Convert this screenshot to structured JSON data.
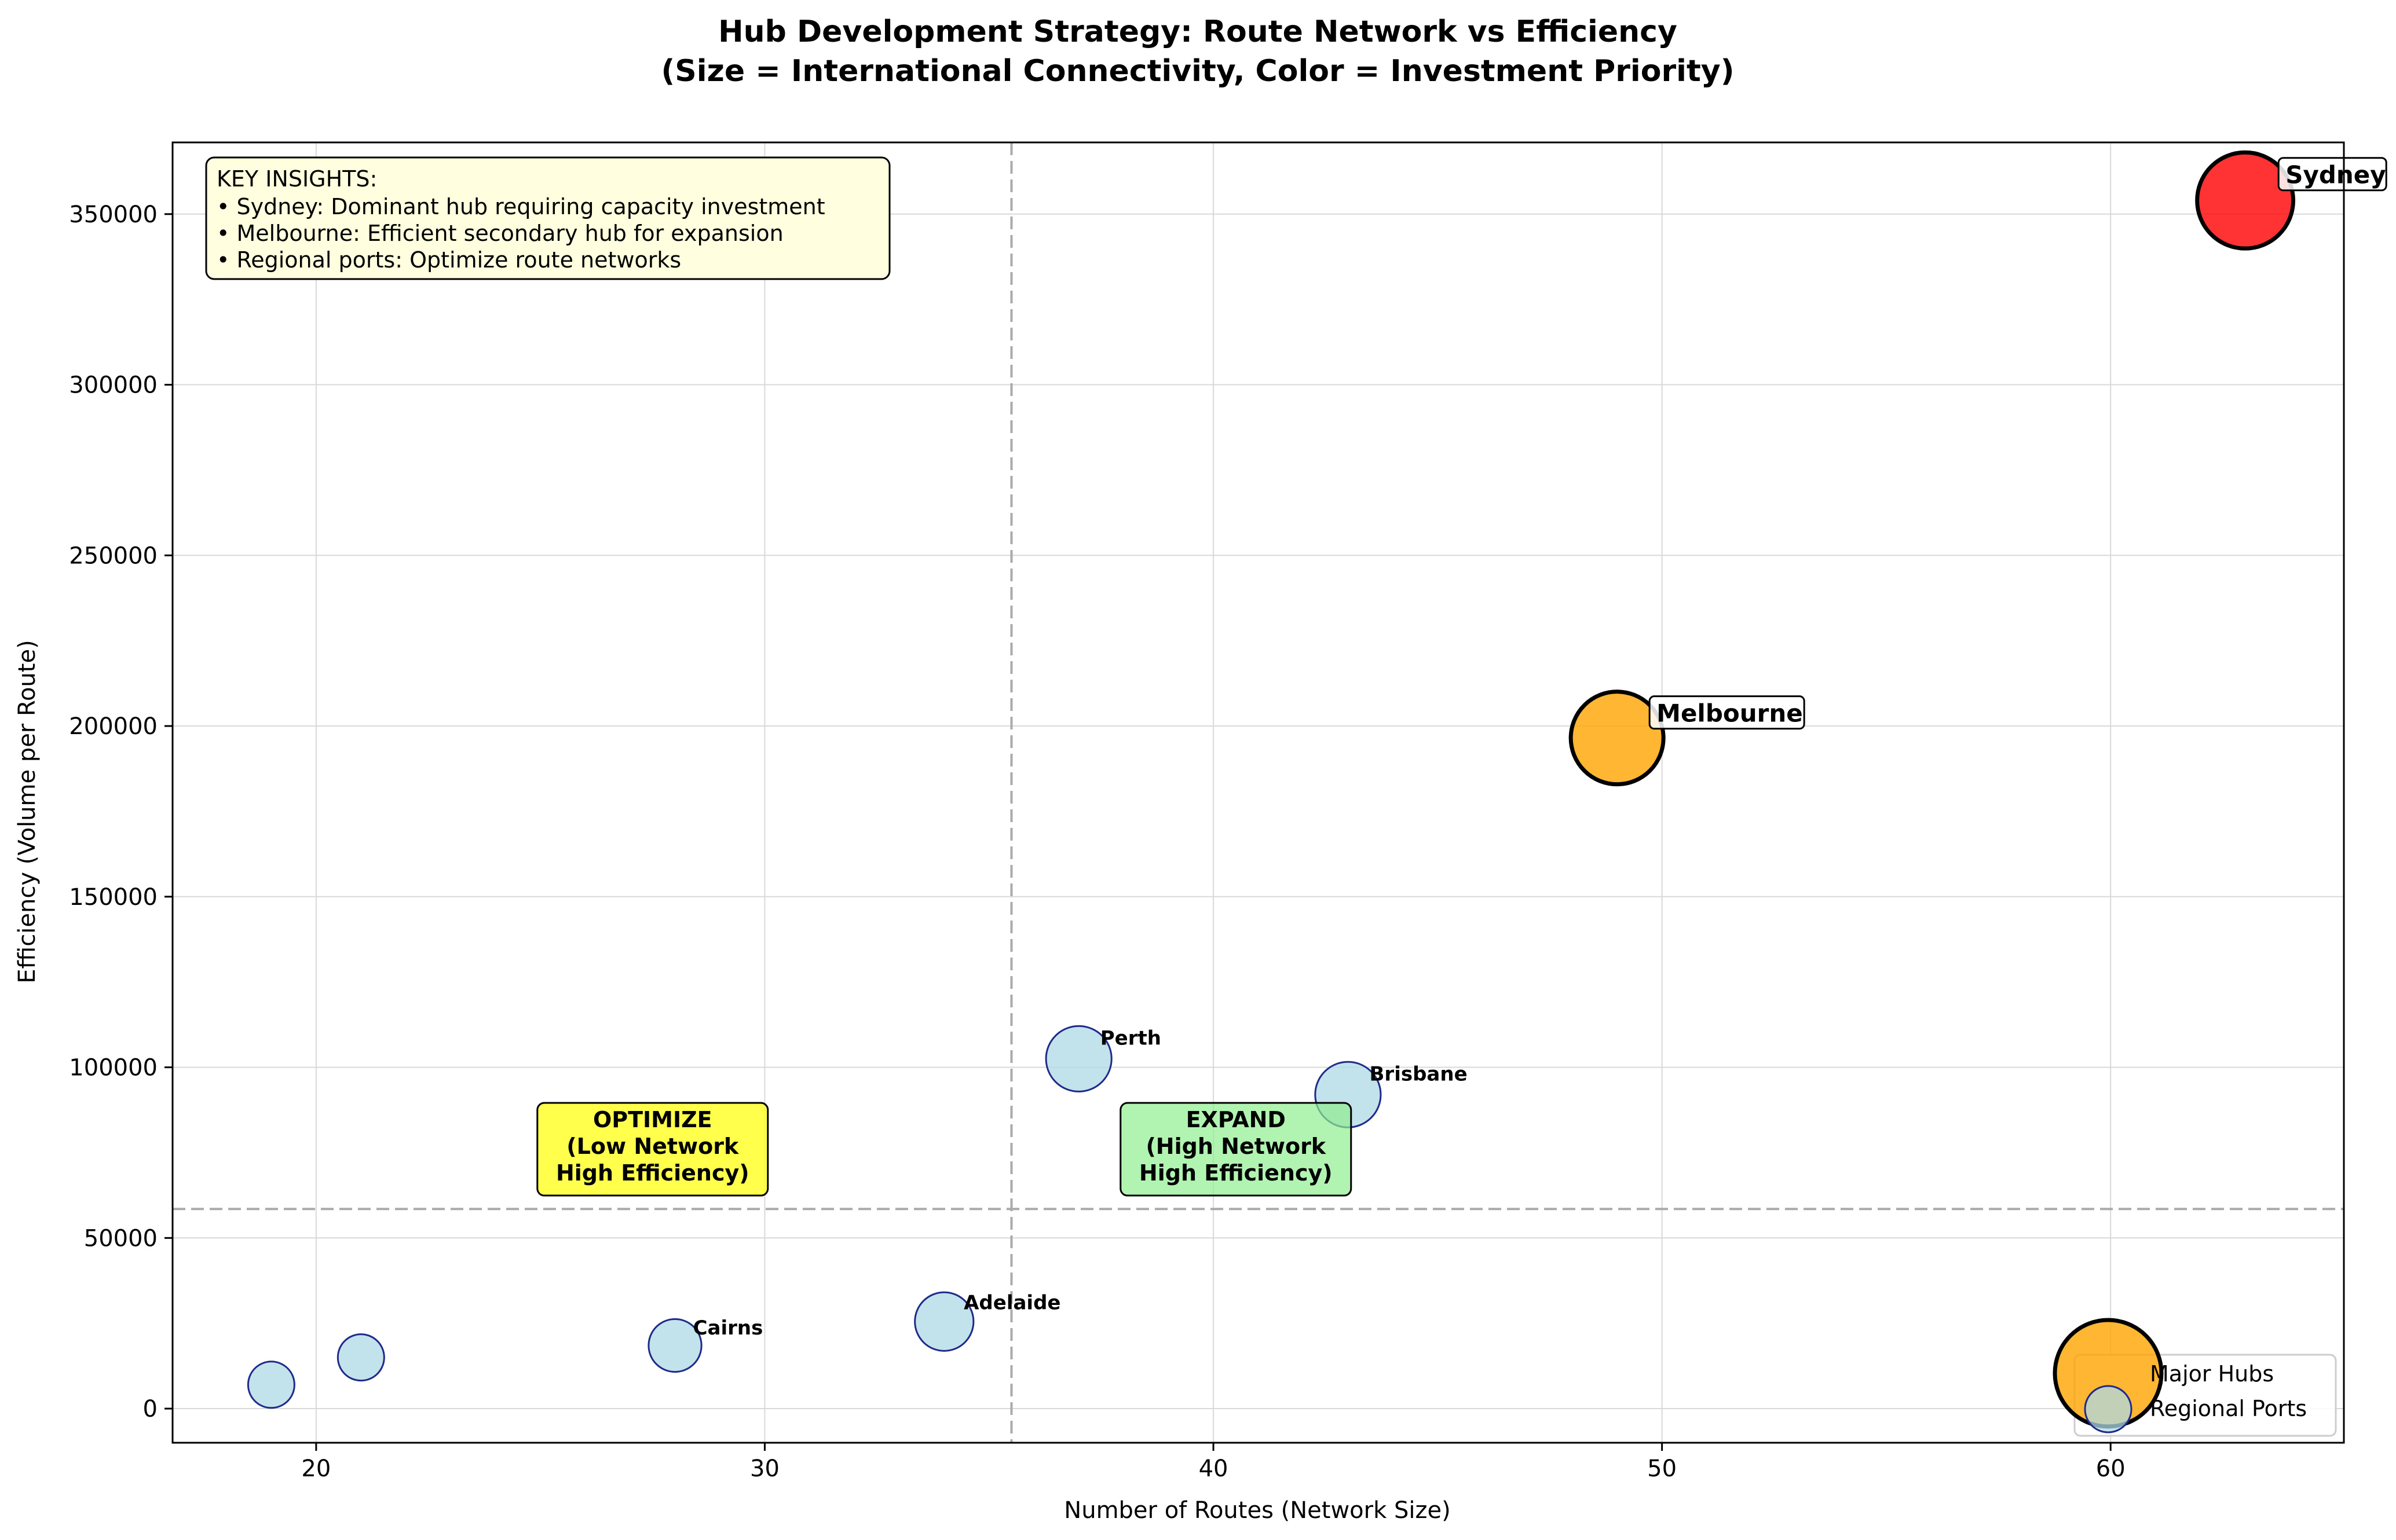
{
  "chart_data": {
    "type": "scatter",
    "title": "Hub Development Strategy: Route Network vs Efficiency",
    "subtitle": "(Size = International Connectivity, Color = Investment Priority)",
    "xlabel": "Number of Routes (Network Size)",
    "ylabel": "Efficiency (Volume per Route)",
    "xlim": [
      16.8,
      65.2
    ],
    "ylim": [
      -10000,
      371000
    ],
    "xticks": [
      20,
      30,
      40,
      50,
      60
    ],
    "yticks": [
      0,
      50000,
      100000,
      150000,
      200000,
      250000,
      300000,
      350000
    ],
    "grid": true,
    "reference_lines": {
      "x": 35.5,
      "y": 58500
    },
    "points": [
      {
        "name": "",
        "x": 19,
        "y": 7000,
        "connectivity": 1,
        "color": "#add8e6"
      },
      {
        "name": "",
        "x": 21,
        "y": 15000,
        "connectivity": 1,
        "color": "#add8e6"
      },
      {
        "name": "Cairns",
        "x": 28,
        "y": 18500,
        "connectivity": 1.3,
        "color": "#add8e6"
      },
      {
        "name": "Adelaide",
        "x": 34,
        "y": 25500,
        "connectivity": 1.6,
        "color": "#add8e6"
      },
      {
        "name": "Perth",
        "x": 37,
        "y": 102500,
        "connectivity": 2,
        "color": "#add8e6"
      },
      {
        "name": "Brisbane",
        "x": 43,
        "y": 92000,
        "connectivity": 2,
        "color": "#add8e6"
      },
      {
        "name": "Melbourne",
        "x": 49,
        "y": 196500,
        "connectivity": 4,
        "color": "#ffa500"
      },
      {
        "name": "Sydney",
        "x": 63,
        "y": 354000,
        "connectivity": 4.3,
        "color": "#ff0000"
      }
    ],
    "quadrant_boxes": [
      {
        "lines": [
          "OPTIMIZE",
          "(Low Network",
          "High Efficiency)"
        ],
        "x": 27.5,
        "y": 76000,
        "color": "#ffff00"
      },
      {
        "lines": [
          "EXPAND",
          "(High Network",
          "High Efficiency)"
        ],
        "x": 40.5,
        "y": 76000,
        "color": "#90ee90"
      }
    ],
    "insights": {
      "heading": "KEY INSIGHTS:",
      "lines": [
        "• Sydney: Dominant hub requiring capacity investment",
        "• Melbourne: Efficient secondary hub for expansion",
        "• Regional ports: Optimize route networks"
      ]
    },
    "legend": {
      "position": "lower-right",
      "entries": [
        {
          "label": "Major Hubs",
          "color": "#ffa500"
        },
        {
          "label": "Regional Ports",
          "color": "#add8e6"
        }
      ]
    }
  }
}
